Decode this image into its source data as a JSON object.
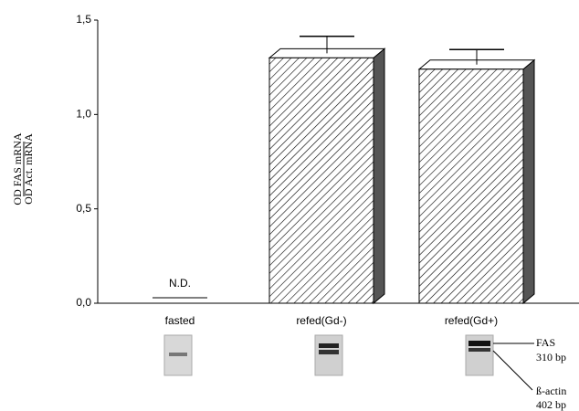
{
  "chart_data": {
    "type": "bar",
    "y_title": [
      "OD FAS mRNA",
      "OD Act. mRNA"
    ],
    "categories": [
      "fasted",
      "refed(Gd-)",
      "refed(Gd+)"
    ],
    "values": [
      null,
      1.3,
      1.24
    ],
    "value_labels": [
      "N.D.",
      null,
      null
    ],
    "errors": [
      null,
      0.09,
      0.08
    ],
    "ylim": [
      0,
      1.5
    ],
    "yticks": [
      {
        "value": 0,
        "label": "0,0"
      },
      {
        "value": 0.5,
        "label": "0,5"
      },
      {
        "value": 1,
        "label": "1,0"
      },
      {
        "value": 1.5,
        "label": "1,5"
      }
    ],
    "color": "#ffffff",
    "side_color": "#555555",
    "gel_labels": [
      "FAS",
      "310 bp",
      "ß-actin",
      "402 bp"
    ]
  }
}
